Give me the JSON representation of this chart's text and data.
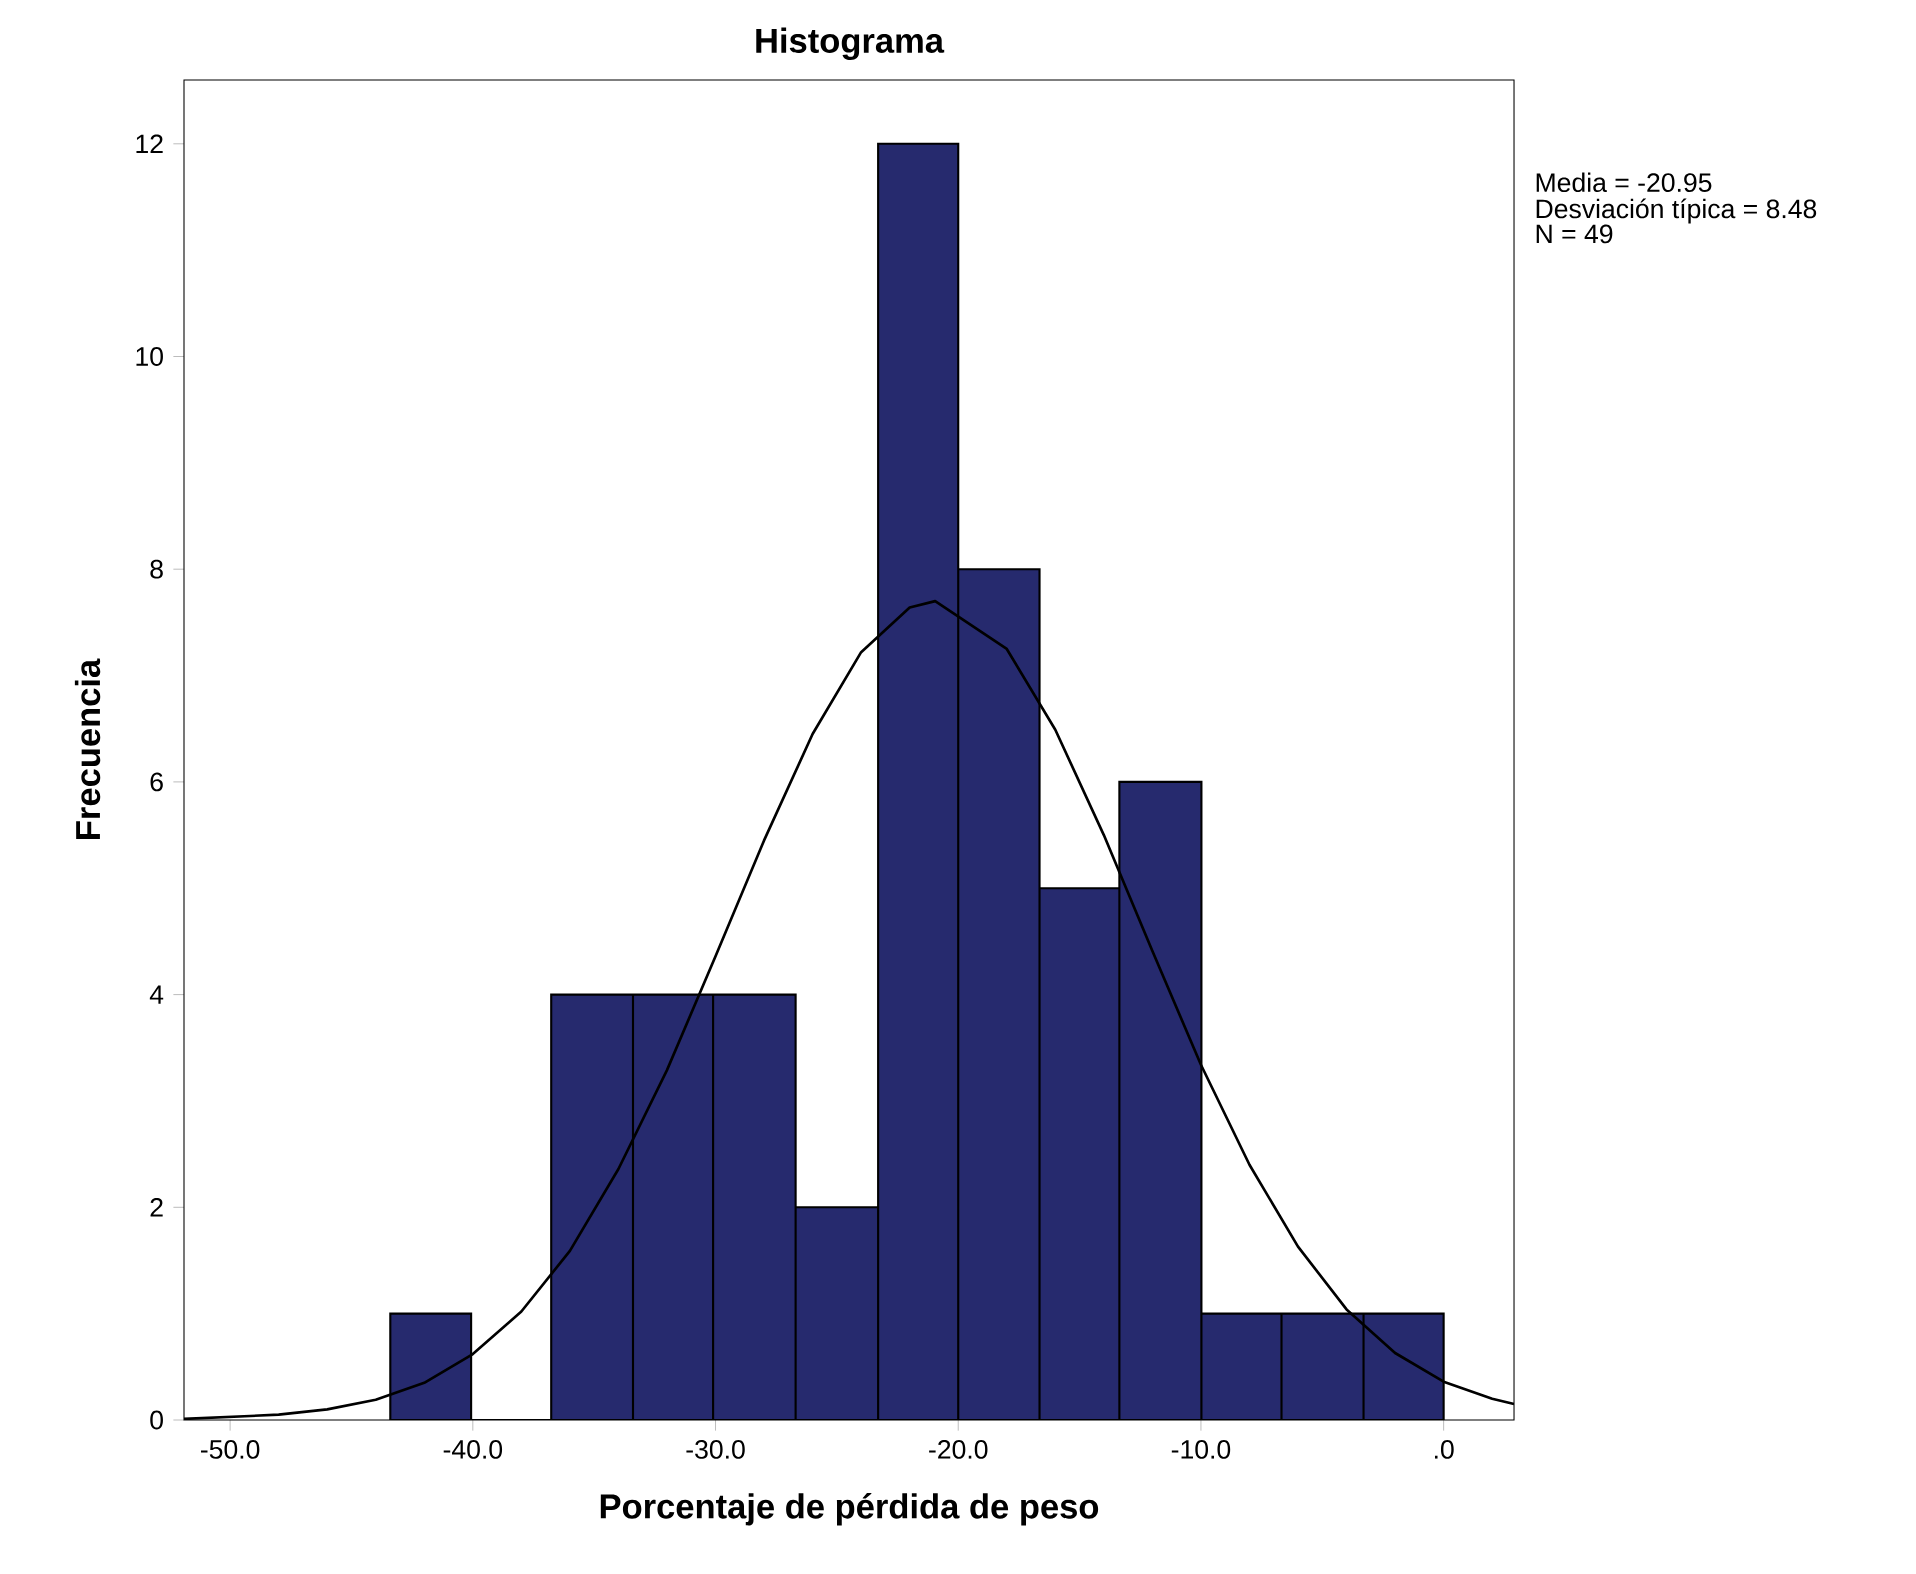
{
  "chart_data": {
    "type": "histogram",
    "title": "Histograma",
    "xlabel": "Porcentaje de pérdida de peso",
    "ylabel": "Frecuencia",
    "annotations": [
      "Media = -20.95",
      "Desviación típica = 8.48",
      "N = 49"
    ],
    "bins": [
      -43.4,
      -40.07,
      -36.77,
      -33.4,
      -30.1,
      -26.7,
      -23.3,
      -20.0,
      -16.65,
      -13.36,
      -9.98,
      -6.68,
      -3.3,
      0
    ],
    "values": [
      1,
      0,
      4,
      4,
      4,
      2,
      12,
      8,
      5,
      6,
      1,
      1,
      1
    ],
    "color": "#262a6e",
    "series": [
      {
        "type": "line",
        "color": "#000000",
        "x": [
          -51.9,
          -48,
          -46,
          -44,
          -42,
          -40,
          -38,
          -36,
          -34,
          -32,
          -30,
          -28,
          -26,
          -24,
          -22,
          -20.95,
          -18,
          -16,
          -14,
          -12,
          -10,
          -8,
          -6,
          -4,
          -2,
          0,
          2,
          2.9
        ],
        "values": [
          0.01,
          0.05,
          0.1,
          0.19,
          0.35,
          0.62,
          1.02,
          1.59,
          2.36,
          3.29,
          4.36,
          5.45,
          6.45,
          7.22,
          7.64,
          7.7,
          7.25,
          6.49,
          5.5,
          4.41,
          3.34,
          2.4,
          1.63,
          1.04,
          0.63,
          0.36,
          0.2,
          0.15
        ]
      }
    ],
    "xlim": [
      -51.9,
      2.9
    ],
    "ylim": [
      0,
      12.6
    ],
    "xticks": [
      {
        "value": -50,
        "label": "-50.0"
      },
      {
        "value": -40,
        "label": "-40.0"
      },
      {
        "value": -30,
        "label": "-30.0"
      },
      {
        "value": -20,
        "label": "-20.0"
      },
      {
        "value": -10,
        "label": "-10.0"
      },
      {
        "value": 0,
        "label": ".0"
      }
    ],
    "yticks": [
      0,
      2,
      4,
      6,
      8,
      10,
      12
    ]
  }
}
